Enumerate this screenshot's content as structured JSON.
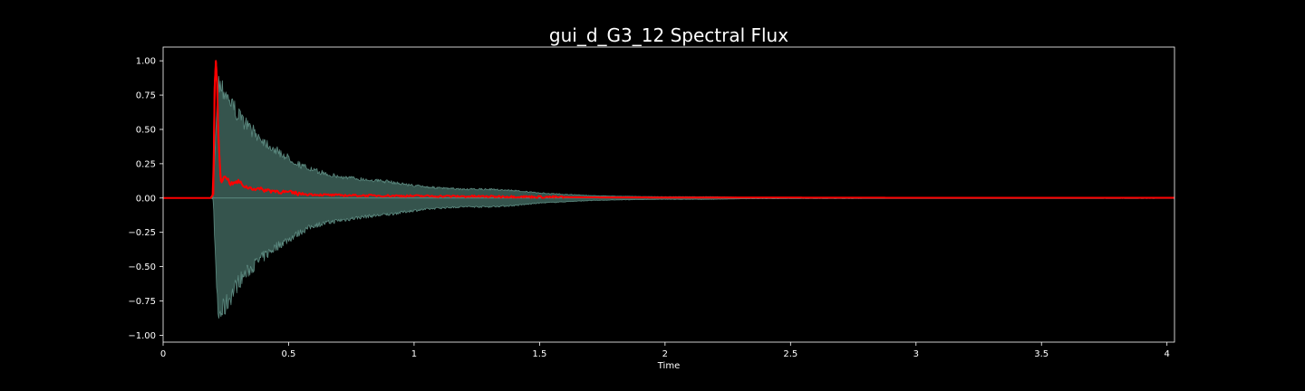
{
  "chart_data": {
    "type": "line",
    "title": "gui_d_G3_12 Spectral Flux",
    "xlabel": "Time",
    "ylabel": "",
    "xlim": [
      0,
      4.03
    ],
    "ylim": [
      -1.05,
      1.1
    ],
    "x_ticks": [
      "0",
      "0.5",
      "1",
      "1.5",
      "2",
      "2.5",
      "3",
      "3.5",
      "4"
    ],
    "x_tick_values": [
      0,
      0.5,
      1,
      1.5,
      2,
      2.5,
      3,
      3.5,
      4
    ],
    "y_ticks": [
      "1.00",
      "0.75",
      "0.50",
      "0.25",
      "0.00",
      "−0.25",
      "−0.50",
      "−0.75",
      "−1.00"
    ],
    "y_tick_values": [
      1.0,
      0.75,
      0.5,
      0.25,
      0.0,
      -0.25,
      -0.5,
      -0.75,
      -1.0
    ],
    "grid": false,
    "legend": "none",
    "background": "#000000",
    "series": [
      {
        "role": "waveform envelope",
        "color": "#5c8a80",
        "fill_color": "#35544d",
        "x": [
          0,
          0.19,
          0.2,
          0.21,
          0.22,
          0.25,
          0.3,
          0.35,
          0.4,
          0.45,
          0.5,
          0.55,
          0.6,
          0.7,
          0.8,
          0.9,
          1.0,
          1.1,
          1.2,
          1.3,
          1.4,
          1.5,
          1.6,
          1.7,
          1.8,
          1.9,
          2.0,
          2.1,
          2.2,
          2.3,
          2.5,
          3.0,
          3.5,
          4.03
        ],
        "upper": [
          0,
          0,
          0.01,
          0.6,
          0.93,
          0.85,
          0.66,
          0.55,
          0.46,
          0.38,
          0.32,
          0.26,
          0.22,
          0.17,
          0.15,
          0.13,
          0.1,
          0.08,
          0.07,
          0.07,
          0.06,
          0.04,
          0.03,
          0.02,
          0.015,
          0.012,
          0.01,
          0.01,
          0.01,
          0.006,
          0.005,
          0.004,
          0.004,
          0.003
        ],
        "lower": [
          0,
          0,
          -0.01,
          -0.6,
          -0.95,
          -0.86,
          -0.67,
          -0.56,
          -0.47,
          -0.39,
          -0.33,
          -0.27,
          -0.22,
          -0.18,
          -0.15,
          -0.13,
          -0.1,
          -0.08,
          -0.07,
          -0.07,
          -0.06,
          -0.04,
          -0.03,
          -0.02,
          -0.015,
          -0.012,
          -0.01,
          -0.01,
          -0.01,
          -0.006,
          -0.005,
          -0.004,
          -0.004,
          -0.003
        ]
      },
      {
        "role": "spectral flux",
        "color": "#ff0000",
        "x": [
          0,
          0.19,
          0.2,
          0.205,
          0.21,
          0.215,
          0.22,
          0.23,
          0.25,
          0.27,
          0.3,
          0.33,
          0.36,
          0.4,
          0.45,
          0.5,
          0.55,
          0.6,
          0.7,
          0.8,
          1.0,
          1.2,
          1.4,
          1.5,
          1.7,
          2.0,
          2.5,
          3.0,
          3.5,
          4.03
        ],
        "y": [
          0,
          0,
          0.03,
          0.8,
          1.0,
          0.85,
          0.45,
          0.12,
          0.16,
          0.1,
          0.12,
          0.08,
          0.07,
          0.06,
          0.05,
          0.04,
          0.03,
          0.025,
          0.02,
          0.018,
          0.015,
          0.012,
          0.01,
          0.008,
          0.005,
          0.004,
          0.003,
          0.002,
          0.002,
          0.002
        ]
      }
    ]
  }
}
